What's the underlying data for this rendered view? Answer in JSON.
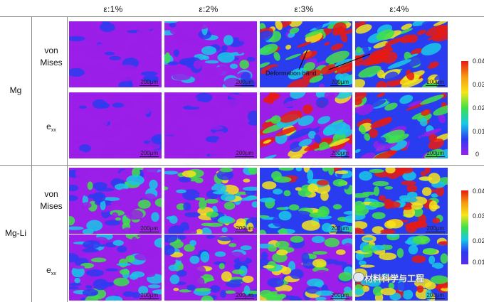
{
  "columns": [
    "ε:1%",
    "ε:2%",
    "ε:3%",
    "ε:4%"
  ],
  "groups": [
    {
      "name": "Mg",
      "rows": [
        {
          "label": "von\nMises",
          "kind": "vm"
        },
        {
          "label": "e",
          "sub": "xx",
          "kind": "exx"
        }
      ]
    },
    {
      "name": "Mg-Li",
      "rows": [
        {
          "label": "von\nMises",
          "kind": "vm"
        },
        {
          "label": "e",
          "sub": "xx",
          "kind": "exx"
        }
      ]
    }
  ],
  "scale_bar_label": "200μm",
  "annotation": "Deformation band",
  "colorbar_top": {
    "ticks": [
      "0.04",
      "0.03",
      "0.02",
      "0.01",
      "0"
    ]
  },
  "colorbar_bottom": {
    "ticks": [
      "0.04",
      "0.03",
      "0.02",
      "0.01"
    ]
  },
  "colors": {
    "purple": "#9b1fe8",
    "blue": "#2a3cf0",
    "cyan": "#19c8e6",
    "green": "#3fe04a",
    "yellow": "#f5e51a",
    "red": "#e81a12"
  },
  "intensity": {
    "Mg": {
      "vm": [
        0.05,
        0.18,
        0.5,
        0.75
      ],
      "exx": [
        0.02,
        0.06,
        0.38,
        0.5
      ]
    },
    "Mg-Li": {
      "vm": [
        0.25,
        0.45,
        0.55,
        0.8
      ],
      "exx": [
        0.18,
        0.35,
        0.4,
        0.62
      ]
    }
  },
  "watermark": "材料科学与工程"
}
